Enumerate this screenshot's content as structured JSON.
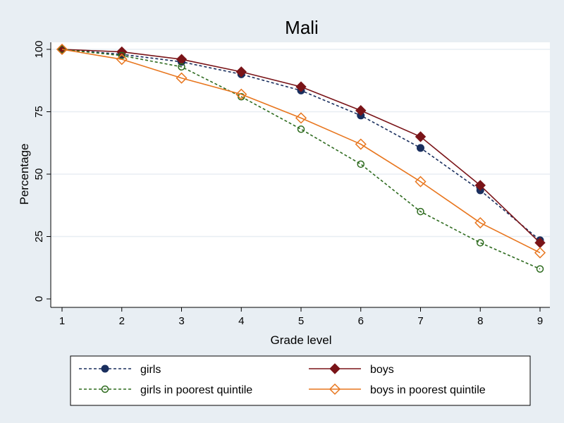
{
  "chart_data": {
    "type": "line",
    "title": "Mali",
    "xlabel": "Grade level",
    "ylabel": "Percentage",
    "x": [
      1,
      2,
      3,
      4,
      5,
      6,
      7,
      8,
      9
    ],
    "xlim": [
      1,
      9
    ],
    "ylim": [
      0,
      100
    ],
    "xticks": [
      1,
      2,
      3,
      4,
      5,
      6,
      7,
      8,
      9
    ],
    "yticks": [
      0,
      25,
      50,
      75,
      100
    ],
    "grid": "horizontal",
    "legend_placement": "bottom",
    "series": [
      {
        "name": "girls",
        "color": "#1a2f5e",
        "dash": "dashed",
        "marker": "filled-circle",
        "values": [
          100,
          98,
          95,
          90,
          83.5,
          73.5,
          60.5,
          43.5,
          23.5
        ]
      },
      {
        "name": "boys",
        "color": "#7a1418",
        "dash": "solid",
        "marker": "filled-diamond",
        "values": [
          100,
          99,
          96,
          91,
          85,
          75.5,
          65,
          45.5,
          22.5
        ]
      },
      {
        "name": "girls in poorest quintile",
        "color": "#2e6b1f",
        "dash": "dashed",
        "marker": "hollow-circle",
        "values": [
          100,
          97.5,
          93,
          81,
          68,
          54,
          35,
          22.5,
          12
        ]
      },
      {
        "name": "boys in poorest quintile",
        "color": "#e8761e",
        "dash": "solid",
        "marker": "hollow-diamond",
        "values": [
          100,
          96,
          88.5,
          82,
          72.5,
          62,
          47,
          30.5,
          18.5
        ]
      }
    ]
  }
}
